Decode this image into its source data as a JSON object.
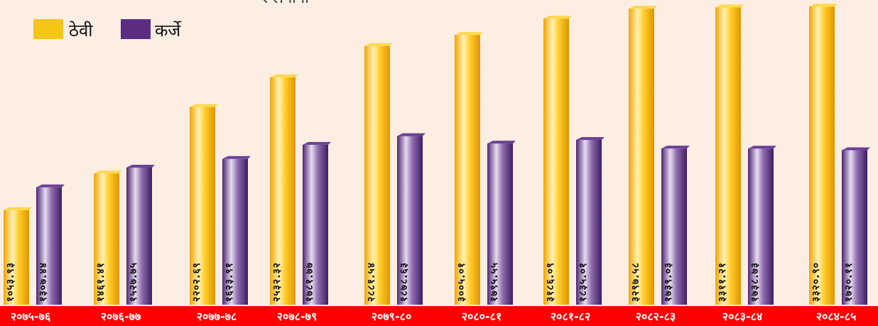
{
  "chart_data": {
    "type": "bar",
    "title": "र लगानी",
    "categories": [
      "२०७५-७६",
      "२०७६-७७",
      "२०७७-७८",
      "२०७८-७९",
      "२०७९-८०",
      "२०८०-८१",
      "२०८१-८२",
      "२०८२-८३",
      "२०८३-८४",
      "२०८४-८५"
    ],
    "series": [
      {
        "name": "ठेवी",
        "values": [
          1053,
          1461,
          2202,
          2532,
          2881,
          3005,
          3186,
          3297,
          3311,
          3320
        ],
        "labels": [
          "१०५३.९३",
          "१४६१.४१",
          "२२०२.६९",
          "२५३२.३२",
          "२८८१.५४",
          "३००५.०१",
          "३१८६.०९",
          "३२९७.५८",
          "३३११.२१",
          "३३२०.९०"
        ],
        "color": "#f5b912"
      },
      {
        "name": "कर्जे",
        "values": [
          1307,
          1527,
          1623,
          1781,
          1878,
          1795,
          1835,
          1739,
          1738,
          1720
        ],
        "labels": [
          "१३०७.४४",
          "१५२७.७५",
          "१६२३.९१",
          "१७८१.७७",
          "१८७८.६३",
          "१७९५.५५",
          "१८३५.०१",
          "१७३९.०३",
          "१७३८.७३",
          "१७२०.११"
        ],
        "color": "#5a2d82"
      }
    ],
    "legend": "top-left",
    "grid": false
  },
  "colors": {
    "background": "#fdeee4",
    "axis_band": "#ff0000",
    "category_text": "#ffffff"
  }
}
